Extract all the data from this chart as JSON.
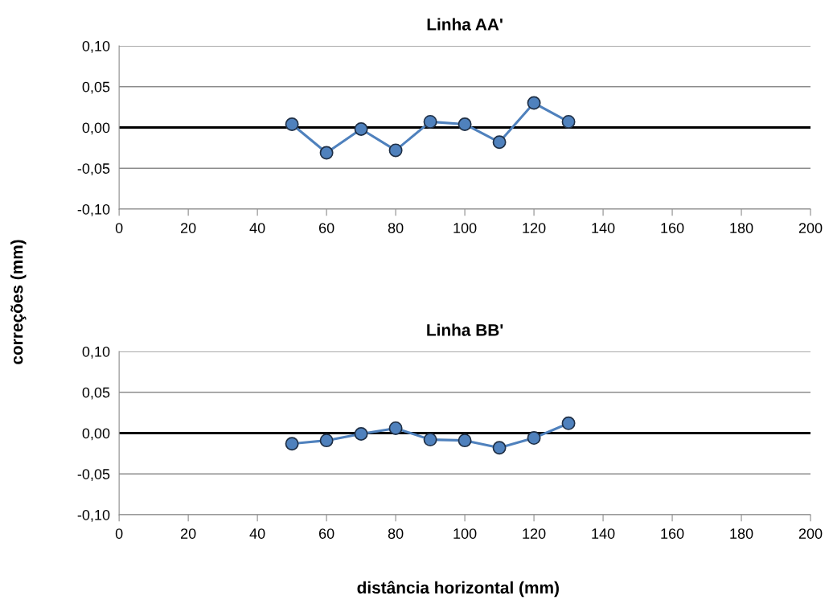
{
  "chart_data": [
    {
      "type": "line",
      "title": "Linha AA'",
      "ylabel": "correções (mm)",
      "x": [
        50,
        60,
        70,
        80,
        90,
        100,
        110,
        120,
        130
      ],
      "series": [
        {
          "color": "#4f81bd",
          "values": [
            0.004,
            -0.031,
            -0.002,
            -0.028,
            0.007,
            0.004,
            -0.018,
            0.03,
            0.007
          ]
        }
      ],
      "xlim": [
        0,
        200
      ],
      "xticks": [
        0,
        20,
        40,
        60,
        80,
        100,
        120,
        140,
        160,
        180,
        200
      ],
      "ylim": [
        -0.1,
        0.1
      ],
      "yticks": [
        {
          "value": -0.1,
          "label": "-0,10"
        },
        {
          "value": -0.05,
          "label": "-0,05"
        },
        {
          "value": 0,
          "label": "0,00"
        },
        {
          "value": 0.05,
          "label": "0,05"
        },
        {
          "value": 0.1,
          "label": "0,10"
        }
      ],
      "ref_lines": [
        {
          "axis": "y",
          "value": 0,
          "color": "#000000"
        }
      ],
      "grid": "y",
      "marker": "circle",
      "line_style": "solid"
    },
    {
      "type": "line",
      "title": "Linha BB'",
      "xlabel": "distância horizontal (mm)",
      "x": [
        50,
        60,
        70,
        80,
        90,
        100,
        110,
        120,
        130
      ],
      "series": [
        {
          "color": "#4f81bd",
          "values": [
            -0.013,
            -0.009,
            -0.001,
            0.006,
            -0.008,
            -0.009,
            -0.018,
            -0.006,
            0.012
          ]
        }
      ],
      "xlim": [
        0,
        200
      ],
      "xticks": [
        0,
        20,
        40,
        60,
        80,
        100,
        120,
        140,
        160,
        180,
        200
      ],
      "ylim": [
        -0.1,
        0.1
      ],
      "yticks": [
        {
          "value": -0.1,
          "label": "-0,10"
        },
        {
          "value": -0.05,
          "label": "-0,05"
        },
        {
          "value": 0,
          "label": "0,00"
        },
        {
          "value": 0.05,
          "label": "0,05"
        },
        {
          "value": 0.1,
          "label": "0,10"
        }
      ],
      "ref_lines": [
        {
          "axis": "y",
          "value": 0,
          "color": "#000000"
        }
      ],
      "grid": "y",
      "marker": "circle",
      "line_style": "solid"
    }
  ]
}
